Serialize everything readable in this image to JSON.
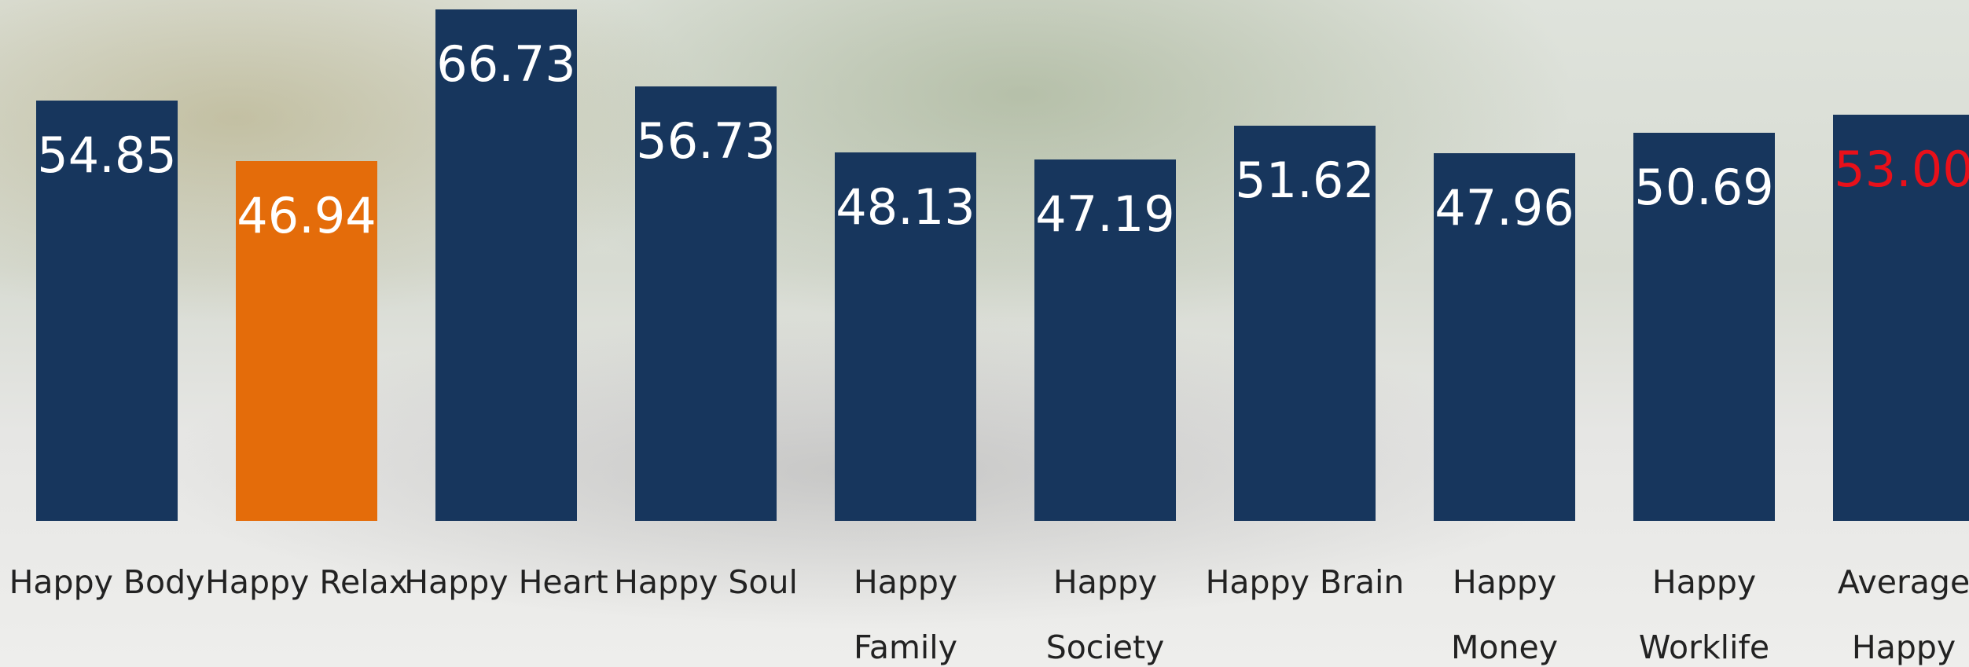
{
  "chart_data": {
    "type": "bar",
    "categories": [
      "Happy Body",
      "Happy Relax",
      "Happy Heart",
      "Happy Soul",
      "Happy\nFamily",
      "Happy\nSociety",
      "Happy Brain",
      "Happy\nMoney",
      "Happy\nWorklife",
      "Average\nHappy"
    ],
    "values": [
      54.85,
      46.94,
      66.73,
      56.73,
      48.13,
      47.19,
      51.62,
      47.96,
      50.69,
      53.0
    ],
    "value_labels": [
      "54.85",
      "46.94",
      "66.73",
      "56.73",
      "48.13",
      "47.19",
      "51.62",
      "47.96",
      "50.69",
      "53.00"
    ],
    "colors": [
      "#17365d",
      "#e46c0a",
      "#17365d",
      "#17365d",
      "#17365d",
      "#17365d",
      "#17365d",
      "#17365d",
      "#17365d",
      "#17365d"
    ],
    "label_colors": [
      "#ffffff",
      "#ffffff",
      "#ffffff",
      "#ffffff",
      "#ffffff",
      "#ffffff",
      "#ffffff",
      "#ffffff",
      "#ffffff",
      "#e8101a"
    ],
    "ylim": [
      0,
      68
    ]
  }
}
